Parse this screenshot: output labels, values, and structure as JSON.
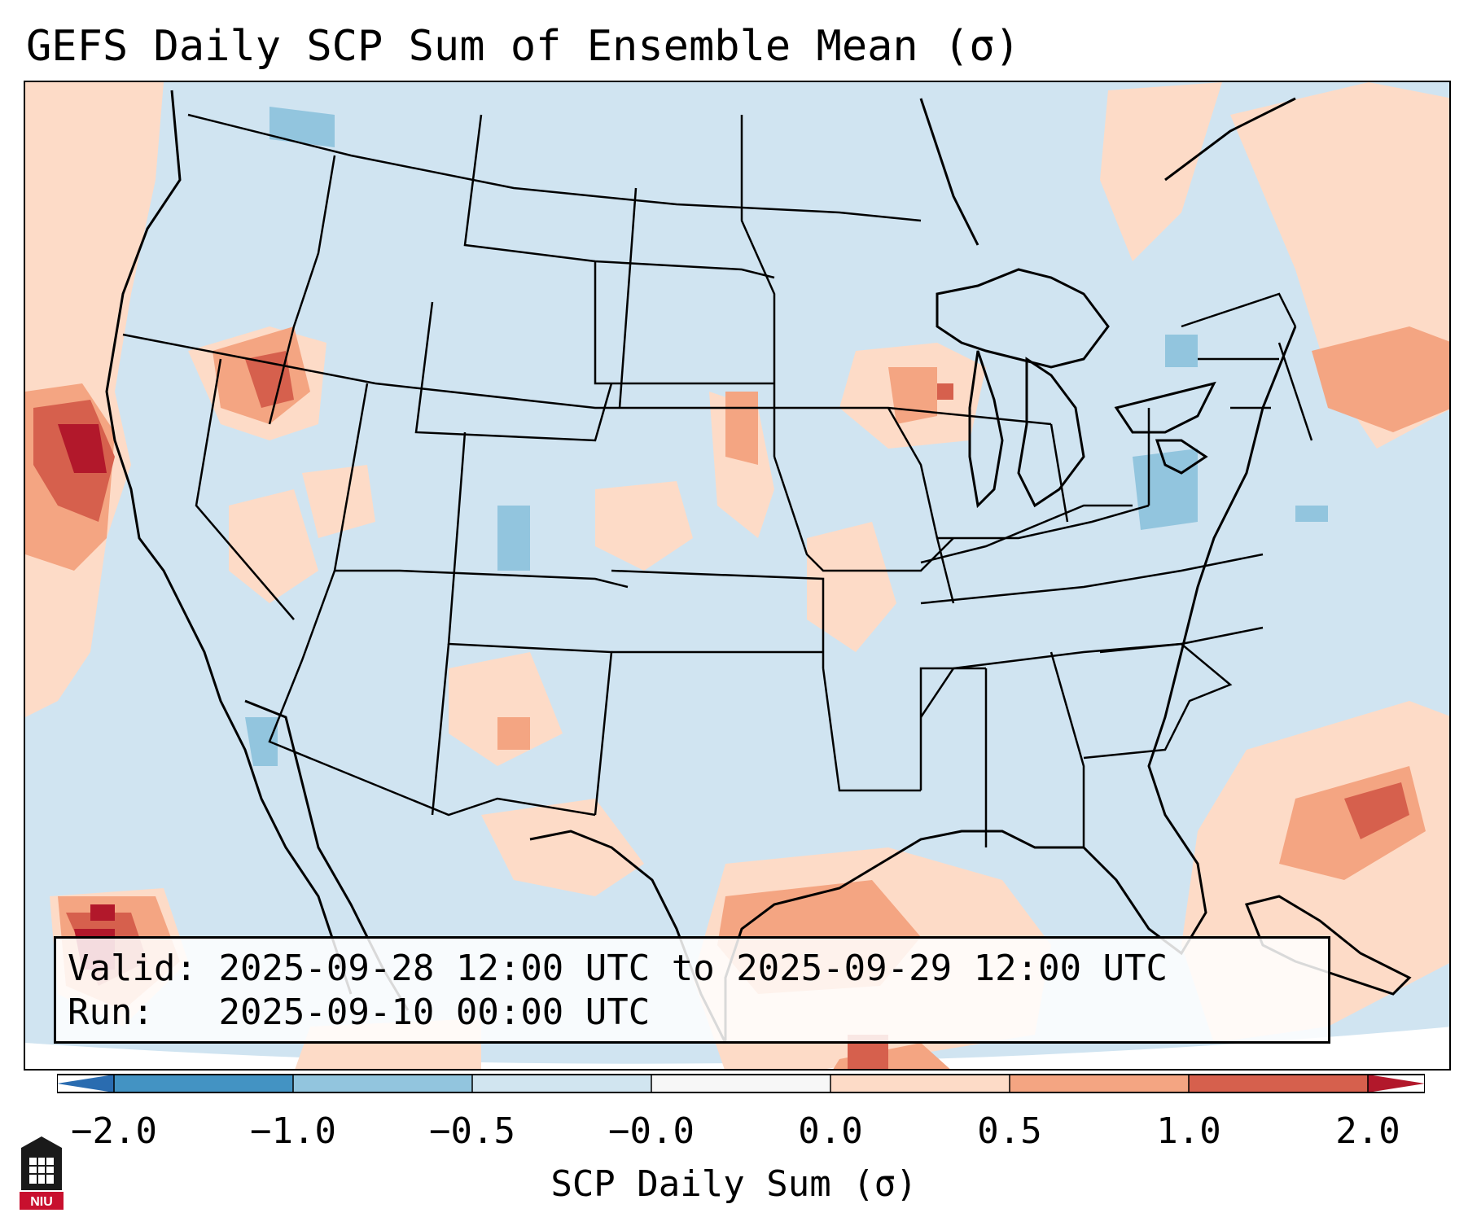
{
  "title": "GEFS Daily SCP Sum of Ensemble Mean (σ)",
  "info": {
    "valid_label": "Valid:",
    "valid_value": "2025-09-28 12:00 UTC to 2025-09-29 12:00 UTC",
    "run_label": "Run:",
    "run_value": "2025-09-10 00:00 UTC"
  },
  "colorbar": {
    "label": "SCP Daily Sum (σ)",
    "ticks": [
      "−2.0",
      "−1.0",
      "−0.5",
      "−0.0",
      "0.0",
      "0.5",
      "1.0",
      "2.0"
    ],
    "bins": [
      {
        "color": "#2a6cb0"
      },
      {
        "color": "#4393c3"
      },
      {
        "color": "#92c5de"
      },
      {
        "color": "#d1e5f0"
      },
      {
        "color": "#f7f7f7"
      },
      {
        "color": "#fddbc7"
      },
      {
        "color": "#f4a582"
      },
      {
        "color": "#d6604d"
      },
      {
        "color": "#b2182b"
      }
    ]
  },
  "logo": {
    "text": "NIU"
  },
  "colors": {
    "background": "#d0e4f1",
    "light_red": "#fddbc7",
    "mid_red": "#f4a582",
    "dark_red": "#d6604d",
    "deep_red": "#b2182b",
    "mid_blue": "#92c5de"
  }
}
